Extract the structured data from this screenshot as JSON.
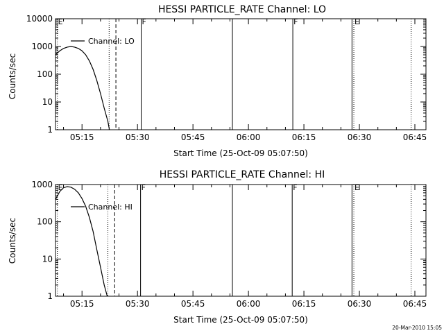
{
  "chart_data": [
    {
      "type": "line",
      "title": "HESSI PARTICLE_RATE Channel: LO",
      "xlabel": "Start Time (25-Oct-09 05:07:50)",
      "ylabel": "Counts/sec",
      "y_scale": "log",
      "ylim": [
        1,
        10000
      ],
      "y_ticks": [
        "1",
        "10",
        "100",
        "1000",
        "10000"
      ],
      "xlim": [
        "05:07:50",
        "06:48:00"
      ],
      "x_ticks": [
        "05:15",
        "05:30",
        "05:45",
        "06:00",
        "06:15",
        "06:30",
        "06:45"
      ],
      "legend": {
        "placement": "top-left"
      },
      "series": [
        {
          "name": "Channel: LO",
          "x": [
            "05:07:50",
            "05:09:00",
            "05:10:00",
            "05:11:00",
            "05:12:00",
            "05:13:00",
            "05:14:00",
            "05:15:00",
            "05:16:00",
            "05:17:00",
            "05:18:00",
            "05:19:00",
            "05:20:00",
            "05:21:00",
            "05:22:00",
            "05:22:25"
          ],
          "y": [
            500,
            700,
            850,
            950,
            1000,
            950,
            850,
            700,
            500,
            300,
            150,
            60,
            20,
            6,
            2,
            1
          ]
        }
      ],
      "markers": [
        {
          "time": "05:08:20",
          "style": "dotted",
          "label": "E"
        },
        {
          "time": "05:22:20",
          "style": "dotted",
          "label": ""
        },
        {
          "time": "05:24:10",
          "style": "dashed",
          "label": ""
        },
        {
          "time": "05:31:00",
          "style": "solid",
          "label": "F"
        },
        {
          "time": "05:55:40",
          "style": "solid",
          "label": ""
        },
        {
          "time": "06:12:00",
          "style": "solid",
          "label": "F"
        },
        {
          "time": "06:28:00",
          "style": "solid",
          "label": ""
        },
        {
          "time": "06:28:30",
          "style": "dotted",
          "label": "E"
        },
        {
          "time": "06:44:00",
          "style": "dotted",
          "label": ""
        }
      ]
    },
    {
      "type": "line",
      "title": "HESSI PARTICLE_RATE Channel: HI",
      "xlabel": "Start Time (25-Oct-09 05:07:50)",
      "ylabel": "Counts/sec",
      "y_scale": "log",
      "ylim": [
        1,
        1000
      ],
      "y_ticks": [
        "1",
        "10",
        "100",
        "1000"
      ],
      "xlim": [
        "05:07:50",
        "06:48:00"
      ],
      "x_ticks": [
        "05:15",
        "05:30",
        "05:45",
        "06:00",
        "06:15",
        "06:30",
        "06:45"
      ],
      "legend": {
        "placement": "top-left"
      },
      "series": [
        {
          "name": "Channel: HI",
          "x": [
            "05:07:50",
            "05:09:00",
            "05:10:00",
            "05:11:00",
            "05:12:00",
            "05:13:00",
            "05:14:00",
            "05:15:00",
            "05:16:00",
            "05:17:00",
            "05:18:00",
            "05:19:00",
            "05:20:00",
            "05:21:00",
            "05:21:50"
          ],
          "y": [
            400,
            650,
            820,
            880,
            850,
            750,
            600,
            420,
            260,
            130,
            55,
            18,
            6,
            2,
            1
          ]
        }
      ],
      "markers": [
        {
          "time": "05:08:20",
          "style": "dotted",
          "label": "E"
        },
        {
          "time": "05:22:00",
          "style": "dotted",
          "label": ""
        },
        {
          "time": "05:23:50",
          "style": "dashed",
          "label": ""
        },
        {
          "time": "05:30:50",
          "style": "solid",
          "label": "F"
        },
        {
          "time": "05:55:40",
          "style": "solid",
          "label": ""
        },
        {
          "time": "06:11:50",
          "style": "solid",
          "label": "F"
        },
        {
          "time": "06:28:00",
          "style": "solid",
          "label": ""
        },
        {
          "time": "06:28:30",
          "style": "dotted",
          "label": "E"
        },
        {
          "time": "06:44:00",
          "style": "dotted",
          "label": ""
        }
      ]
    }
  ],
  "footer": {
    "timestamp": "20-Mar-2010 15:05"
  }
}
